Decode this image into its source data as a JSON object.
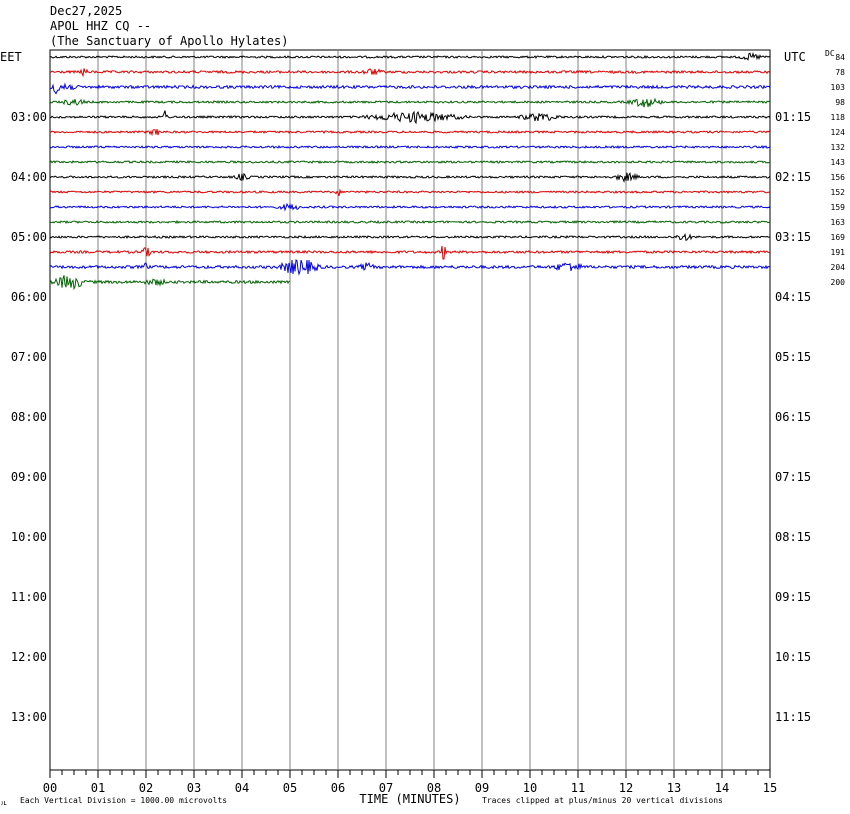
{
  "header": {
    "date": "Dec27,2025",
    "station": "APOL HHZ CQ --",
    "site": "(The Sanctuary of Apollo Hylates)"
  },
  "footer": {
    "corner_mark": "ᴊʟ",
    "scale_note": "Each Vertical Division = 1000.00 microvolts",
    "clip_note": "Traces clipped at plus/minus 20 vertical divisions"
  },
  "chart_data": {
    "type": "line",
    "title": "APOL HHZ CQ --",
    "xlabel": "TIME (MINUTES)",
    "ylabel_left": "EET",
    "ylabel_right": "UTC",
    "dc_label": "DC",
    "xlim": [
      0,
      15
    ],
    "x_ticks": [
      "00",
      "01",
      "02",
      "03",
      "04",
      "05",
      "06",
      "07",
      "08",
      "09",
      "10",
      "11",
      "12",
      "13",
      "14",
      "15"
    ],
    "left_hour_labels": [
      "03:00",
      "04:00",
      "05:00",
      "06:00",
      "07:00",
      "08:00",
      "09:00",
      "10:00",
      "11:00",
      "12:00",
      "13:00"
    ],
    "right_hour_labels": [
      "01:15",
      "02:15",
      "03:15",
      "04:15",
      "05:15",
      "06:15",
      "07:15",
      "08:15",
      "09:15",
      "10:15",
      "11:15"
    ],
    "trace_colors": [
      "#000000",
      "#e00000",
      "#0000e0",
      "#006400"
    ],
    "grid": true,
    "traces": [
      {
        "row": 0,
        "color": "black",
        "dc": 84
      },
      {
        "row": 1,
        "color": "red",
        "dc": 78
      },
      {
        "row": 2,
        "color": "blue",
        "dc": 103
      },
      {
        "row": 3,
        "color": "green",
        "dc": 98
      },
      {
        "row": 4,
        "color": "black",
        "dc": 118
      },
      {
        "row": 5,
        "color": "red",
        "dc": 124
      },
      {
        "row": 6,
        "color": "blue",
        "dc": 132
      },
      {
        "row": 7,
        "color": "green",
        "dc": 143
      },
      {
        "row": 8,
        "color": "black",
        "dc": 156
      },
      {
        "row": 9,
        "color": "red",
        "dc": 152
      },
      {
        "row": 10,
        "color": "blue",
        "dc": 159
      },
      {
        "row": 11,
        "color": "green",
        "dc": 163
      },
      {
        "row": 12,
        "color": "black",
        "dc": 169
      },
      {
        "row": 13,
        "color": "red",
        "dc": 191
      },
      {
        "row": 14,
        "color": "blue",
        "dc": 204
      },
      {
        "row": 15,
        "color": "green",
        "dc": 200,
        "end_minute": 5
      }
    ]
  }
}
